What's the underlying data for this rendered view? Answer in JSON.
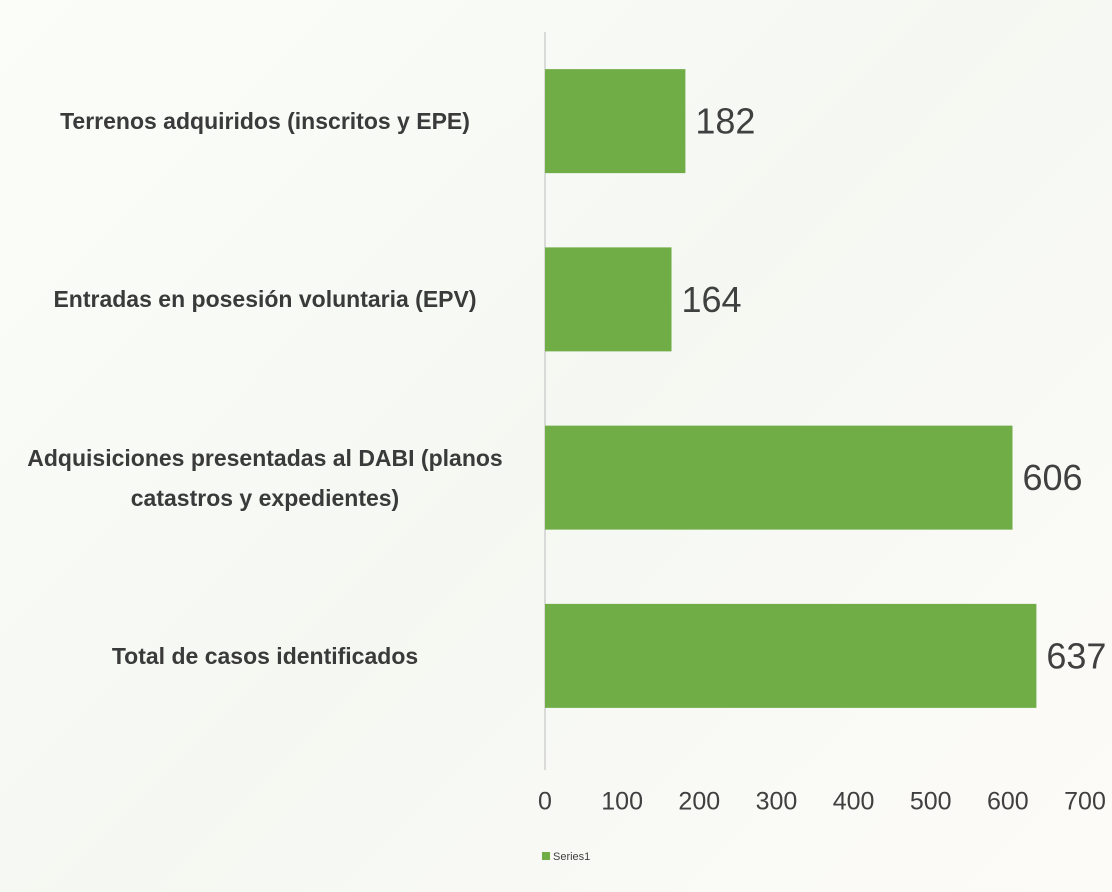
{
  "chart_data": {
    "type": "bar",
    "orientation": "horizontal",
    "categories": [
      "Terrenos adquiridos (inscritos y EPE)",
      "Entradas en posesión voluntaria (EPV)",
      "Adquisiciones presentadas al DABI (planos catastros y expedientes)",
      "Total de casos identificados"
    ],
    "series": [
      {
        "name": "Series1",
        "color": "#70ad47",
        "values": [
          182,
          164,
          606,
          637
        ]
      }
    ],
    "xlim": [
      0,
      700
    ],
    "xticks": [
      0,
      100,
      200,
      300,
      400,
      500,
      600,
      700
    ],
    "grid": false,
    "legend": "bottom"
  }
}
